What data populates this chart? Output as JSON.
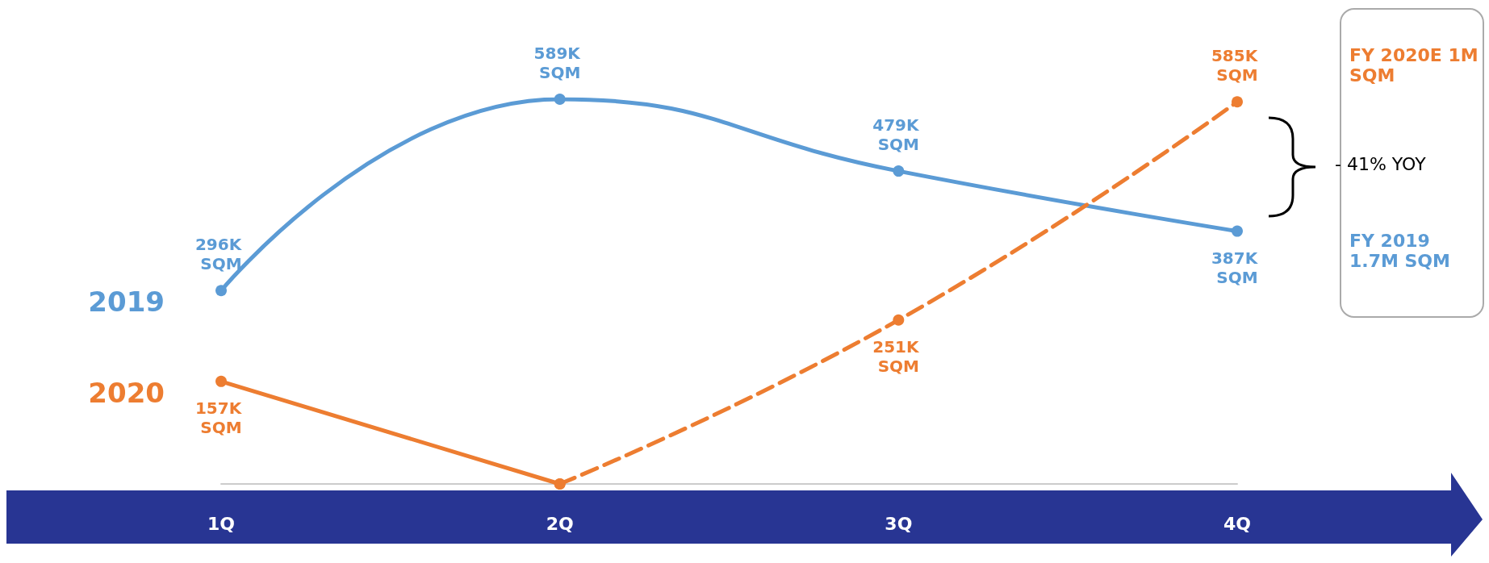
{
  "chart_data": {
    "type": "line",
    "categories": [
      "1Q",
      "2Q",
      "3Q",
      "4Q"
    ],
    "series": [
      {
        "name": "2019",
        "color": "#5b9bd5",
        "values": [
          296,
          589,
          479,
          387
        ],
        "value_labels": [
          "296K SQM",
          "589K SQM",
          "479K SQM",
          "387K SQM"
        ],
        "line_style": "solid"
      },
      {
        "name": "2020",
        "color": "#ed7d31",
        "values": [
          157,
          0,
          null,
          null
        ],
        "value_labels": [
          "157K SQM",
          null,
          null,
          null
        ],
        "line_style": "solid"
      },
      {
        "color": "#ed7d31",
        "values": [
          null,
          0,
          251,
          585
        ],
        "value_labels": [
          null,
          null,
          "251K SQM",
          "585K SQM"
        ],
        "line_style": "dashed"
      }
    ],
    "marker": "circle",
    "grid": false,
    "legend": false,
    "annotations": [
      "FY 2020E 1M SQM",
      "- 41% YOY",
      "FY 2019 1.7M SQM"
    ]
  }
}
